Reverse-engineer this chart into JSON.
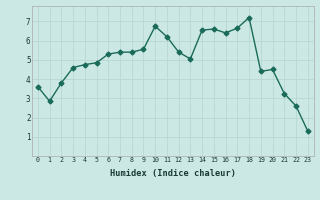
{
  "x": [
    0,
    1,
    2,
    3,
    4,
    5,
    6,
    7,
    8,
    9,
    10,
    11,
    12,
    13,
    14,
    15,
    16,
    17,
    18,
    19,
    20,
    21,
    22,
    23
  ],
  "y": [
    3.6,
    2.85,
    3.8,
    4.6,
    4.75,
    4.85,
    5.3,
    5.4,
    5.4,
    5.55,
    6.75,
    6.2,
    5.4,
    5.05,
    6.55,
    6.6,
    6.4,
    6.65,
    7.2,
    4.4,
    4.5,
    3.25,
    2.6,
    1.3
  ],
  "line_color": "#1a6b5a",
  "bg_color": "#cce8e4",
  "grid_color": "#b8d8d4",
  "xlabel": "Humidex (Indice chaleur)",
  "ylim": [
    0,
    7.8
  ],
  "xlim": [
    -0.5,
    23.5
  ],
  "yticks": [
    1,
    2,
    3,
    4,
    5,
    6,
    7
  ],
  "xticks": [
    0,
    1,
    2,
    3,
    4,
    5,
    6,
    7,
    8,
    9,
    10,
    11,
    12,
    13,
    14,
    15,
    16,
    17,
    18,
    19,
    20,
    21,
    22,
    23
  ],
  "marker": "D",
  "markersize": 2.5,
  "linewidth": 1.0
}
